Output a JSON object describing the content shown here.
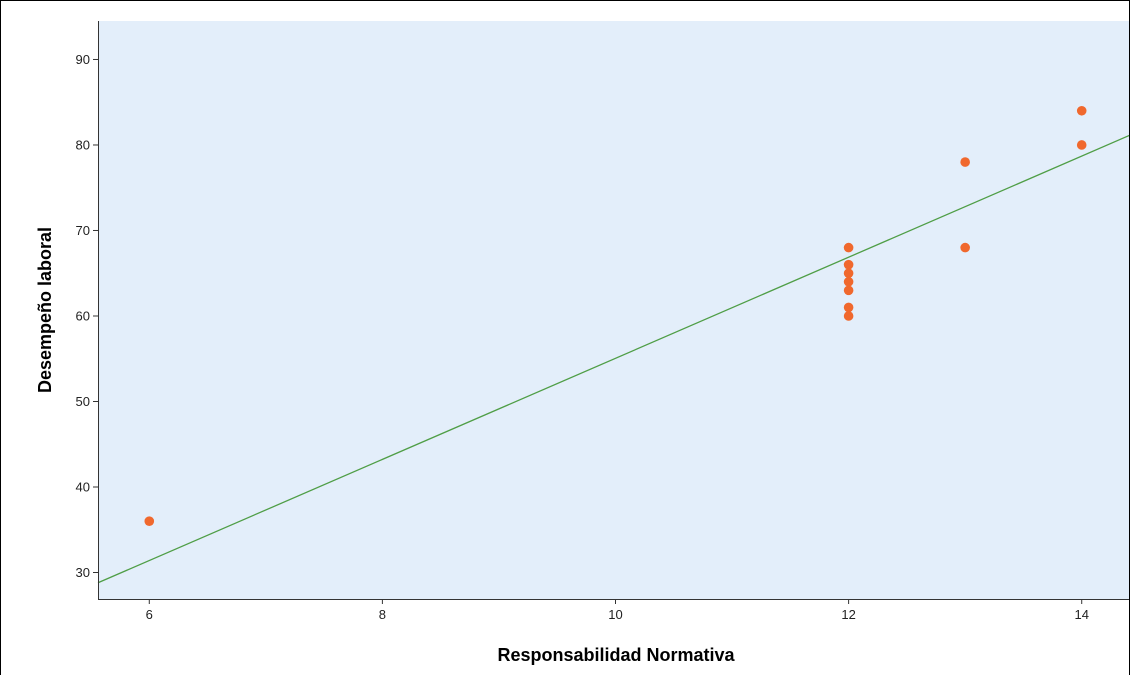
{
  "chart_data": {
    "type": "scatter",
    "xlabel": "Responsabilidad Normativa",
    "ylabel": "Desempeño laboral",
    "xlim": [
      5.56,
      14.44
    ],
    "ylim": [
      26.9,
      94.5
    ],
    "x_ticks": [
      6,
      8,
      10,
      12,
      14
    ],
    "y_ticks": [
      30,
      40,
      50,
      60,
      70,
      80,
      90
    ],
    "grid": false,
    "points": [
      {
        "x": 6,
        "y": 36
      },
      {
        "x": 12,
        "y": 60
      },
      {
        "x": 12,
        "y": 61
      },
      {
        "x": 12,
        "y": 63
      },
      {
        "x": 12,
        "y": 64
      },
      {
        "x": 12,
        "y": 65
      },
      {
        "x": 12,
        "y": 66
      },
      {
        "x": 12,
        "y": 68
      },
      {
        "x": 13,
        "y": 68
      },
      {
        "x": 13,
        "y": 78
      },
      {
        "x": 14,
        "y": 80
      },
      {
        "x": 14,
        "y": 84
      }
    ],
    "fit_line": {
      "x": [
        5.56,
        14.44
      ],
      "y": [
        28.8,
        81.3
      ]
    },
    "colors": {
      "plot_background": "#e3eefa",
      "points": "#f0682d",
      "fit_line": "#4f9e46",
      "axis": "#333333"
    }
  }
}
